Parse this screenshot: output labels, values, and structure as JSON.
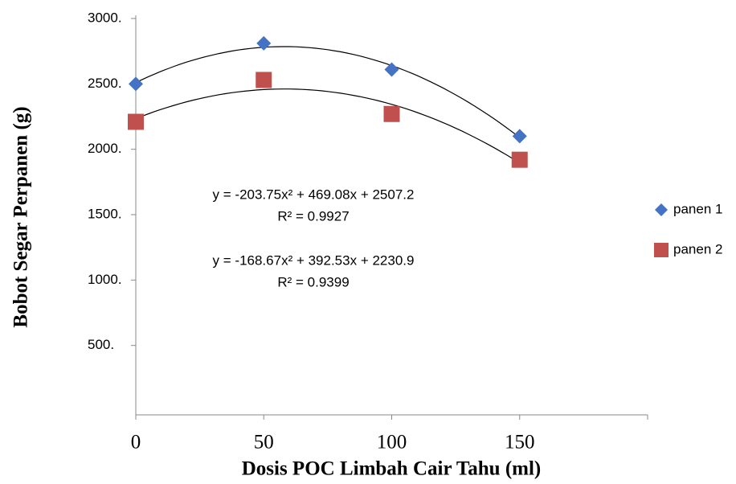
{
  "chart_data": {
    "type": "scatter",
    "x_label": "Dosis POC Limbah Cair Tahu (ml)",
    "y_label": "Bobot Segar Perpanen (g)",
    "xlim": [
      0,
      200
    ],
    "xticks": [
      0,
      50,
      100,
      150
    ],
    "ylim": [
      0,
      3000
    ],
    "yticks": [
      {
        "value": 500,
        "label": "500."
      },
      {
        "value": 1000,
        "label": "1000."
      },
      {
        "value": 1500,
        "label": "1500."
      },
      {
        "value": 2000,
        "label": "2000."
      },
      {
        "value": 2500,
        "label": "2500."
      },
      {
        "value": 3000,
        "label": "3000."
      }
    ],
    "legend": "right",
    "series": [
      {
        "name": "panen 1",
        "color": "#4472c4",
        "marker": "diamond",
        "x": [
          0,
          50,
          100,
          150
        ],
        "values": [
          2500,
          2810,
          2610,
          2100
        ]
      },
      {
        "name": "panen 2",
        "color": "#c0504d",
        "marker": "square",
        "x": [
          0,
          50,
          100,
          150
        ],
        "values": [
          2210,
          2530,
          2270,
          1920
        ]
      }
    ],
    "annotations": [
      "y = -203.75x² + 469.08x + 2507.2",
      "R² = 0.9927",
      "y = -168.67x² + 392.53x + 2230.9",
      "R² = 0.9399"
    ]
  }
}
